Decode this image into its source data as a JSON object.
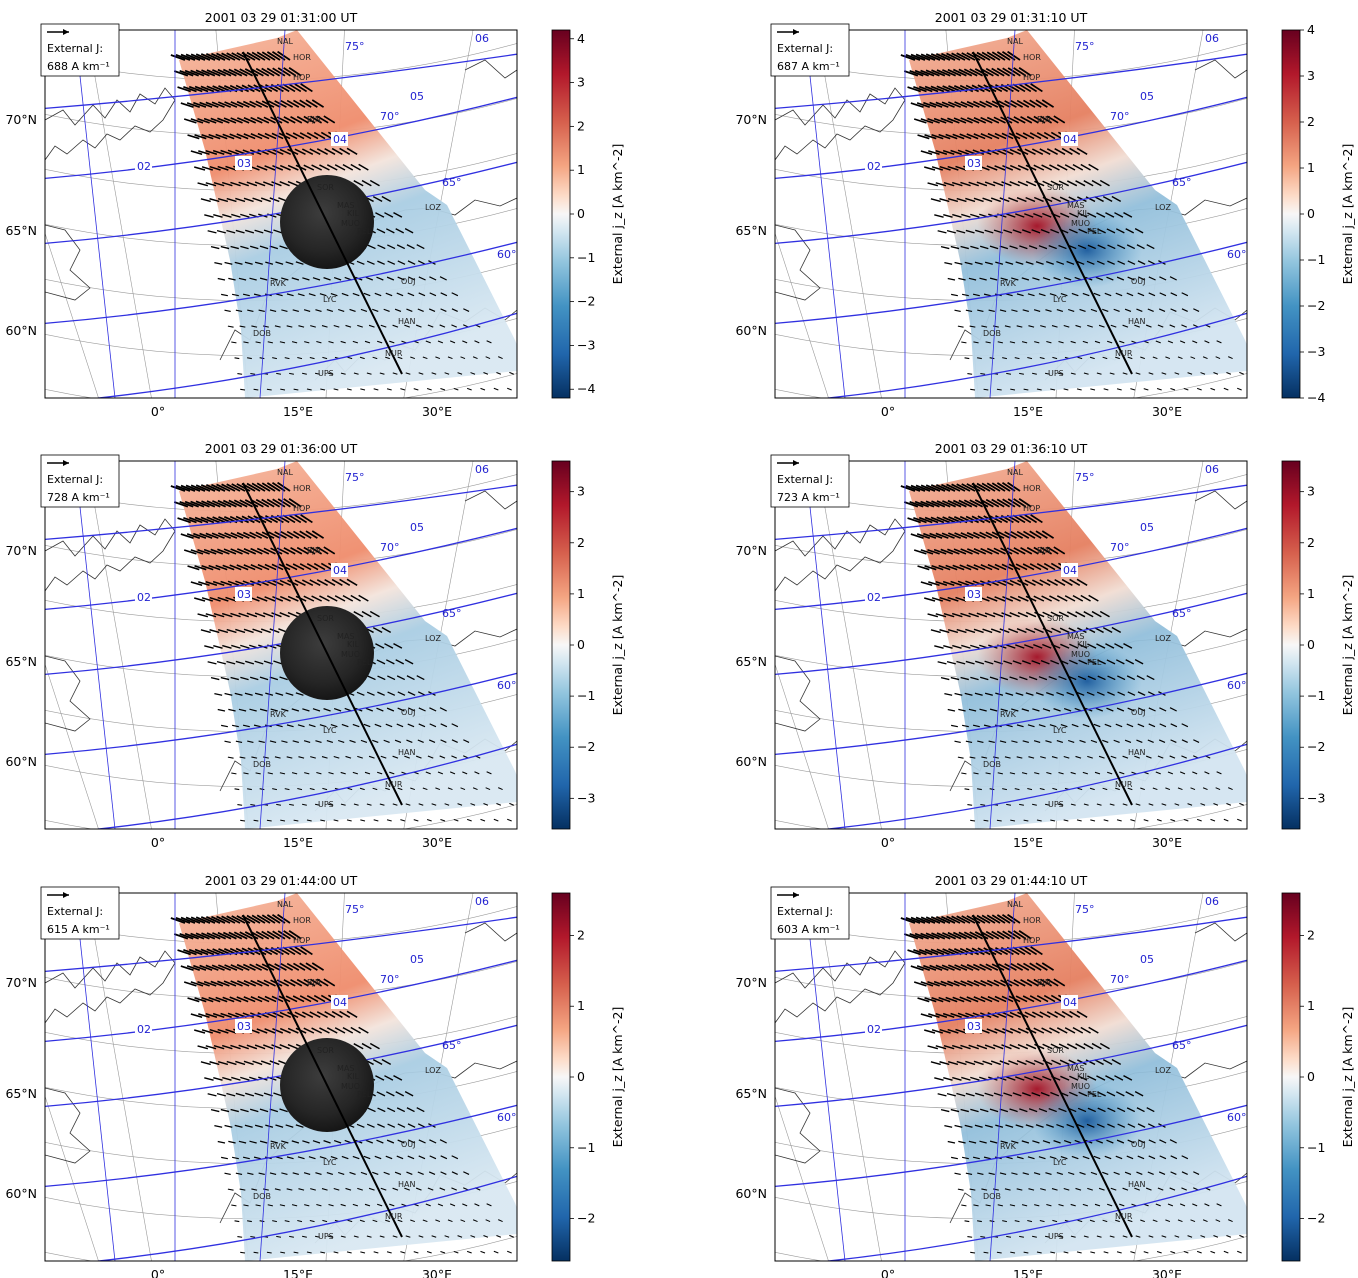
{
  "figure": {
    "colors": {
      "positive": "#b2182b",
      "negative": "#2166ac",
      "neutral": "#f7f7f7",
      "arrow": "#000000",
      "coastline": "#333333",
      "mlat_lines": "#1f1fd0",
      "geo_grid": "#9a9a9a",
      "mlt_lines": "#3030e0",
      "meridian": "#000000"
    },
    "colorbar_label": "External j_z [A km^-2]",
    "legend_label": "External J:",
    "x_ticks": [
      "0°",
      "15°E",
      "30°E"
    ],
    "y_ticks": [
      "70°N",
      "65°N",
      "60°N"
    ],
    "mlt_labels": [
      "02",
      "03",
      "04",
      "05",
      "06"
    ],
    "mlat_labels": [
      "75°",
      "70°",
      "65°",
      "60°"
    ],
    "stations": [
      "NAL",
      "HOR",
      "HOP",
      "BJN",
      "SOR",
      "LOZ",
      "MAS",
      "KIL",
      "MUO",
      "PEL",
      "OUJ",
      "RVK",
      "LYC",
      "DOB",
      "HAN",
      "NUR",
      "UPS"
    ]
  },
  "chart_data": [
    {
      "type": "heatmap",
      "title": "2001 03 29 01:31:00 UT",
      "legend_value": "688 A km⁻¹",
      "colorbar_ticks": [
        "4",
        "3",
        "2",
        "1",
        "0",
        "−1",
        "−2",
        "−3",
        "−4"
      ],
      "vlim": [
        -4.2,
        4.2
      ],
      "has_image": true
    },
    {
      "type": "heatmap",
      "title": "2001 03 29 01:31:10 UT",
      "legend_value": "687 A km⁻¹",
      "colorbar_ticks": [
        "4",
        "3",
        "2",
        "1",
        "0",
        "−1",
        "−2",
        "−3",
        "−4"
      ],
      "vlim": [
        -4.0,
        4.0
      ],
      "has_image": false
    },
    {
      "type": "heatmap",
      "title": "2001 03 29 01:36:00 UT",
      "legend_value": "728 A km⁻¹",
      "colorbar_ticks": [
        "3",
        "2",
        "1",
        "0",
        "−1",
        "−2",
        "−3"
      ],
      "vlim": [
        -3.6,
        3.6
      ],
      "has_image": true
    },
    {
      "type": "heatmap",
      "title": "2001 03 29 01:36:10 UT",
      "legend_value": "723 A km⁻¹",
      "colorbar_ticks": [
        "3",
        "2",
        "1",
        "0",
        "−1",
        "−2",
        "−3"
      ],
      "vlim": [
        -3.6,
        3.6
      ],
      "has_image": false
    },
    {
      "type": "heatmap",
      "title": "2001 03 29 01:44:00 UT",
      "legend_value": "615 A km⁻¹",
      "colorbar_ticks": [
        "2",
        "1",
        "0",
        "−1",
        "−2"
      ],
      "vlim": [
        -2.6,
        2.6
      ],
      "has_image": true
    },
    {
      "type": "heatmap",
      "title": "2001 03 29 01:44:10 UT",
      "legend_value": "603 A km⁻¹",
      "colorbar_ticks": [
        "2",
        "1",
        "0",
        "−1",
        "−2"
      ],
      "vlim": [
        -2.6,
        2.6
      ],
      "has_image": false
    }
  ]
}
